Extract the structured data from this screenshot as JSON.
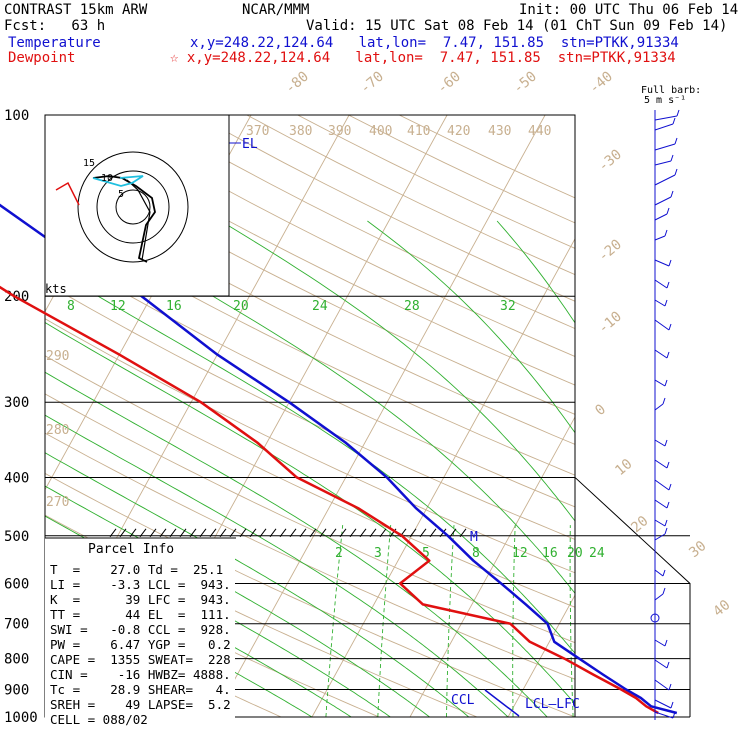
{
  "header": {
    "title": "CONTRAST 15km ARW",
    "forecast": "Fcst:   63 h",
    "center": "NCAR/MMM",
    "init": "Init: 00 UTC Thu 06 Feb 14",
    "valid": "Valid: 15 UTC Sat 08 Feb 14 (01 ChT Sun 09 Feb 14)",
    "temp_label": "Temperature",
    "temp_loc": "x,y=248.22,124.64   lat,lon=  7.47, 151.85  stn=PTKK,91334",
    "dew_label": "Dewpoint",
    "dew_loc": "☆ x,y=248.22,124.64   lat,lon=  7.47, 151.85  stn=PTKK,91334",
    "barb_label_1": "Full barb:",
    "barb_label_2": "5 m s⁻¹",
    "colors": {
      "temperature": "#1010d0",
      "dewpoint": "#e01010",
      "mixing": "#30b030",
      "adiabat": "#c8b090"
    }
  },
  "chart_data": {
    "type": "line",
    "title": "",
    "xlabel": "",
    "ylabel": "",
    "pressure_ticks": [
      100,
      200,
      300,
      400,
      500,
      600,
      700,
      800,
      900,
      1000
    ],
    "ylim": [
      1000,
      100
    ],
    "series": [
      {
        "name": "Temperature",
        "p": [
          985,
          960,
          930,
          900,
          850,
          800,
          750,
          700,
          650,
          600,
          550,
          500,
          450,
          400,
          350,
          300,
          250,
          200,
          180,
          160,
          140,
          130,
          120,
          110,
          100
        ],
        "t": [
          27.0,
          24.0,
          22.5,
          20.5,
          17.3,
          14.0,
          10.5,
          8.8,
          5.5,
          1.8,
          -2.3,
          -6.3,
          -11.1,
          -15.8,
          -22.0,
          -30.0,
          -40.0,
          -51.0,
          -57.0,
          -64.0,
          -71.0,
          -76.0,
          -80.0,
          -82.0,
          -82.5
        ]
      },
      {
        "name": "Dewpoint",
        "p": [
          985,
          960,
          930,
          900,
          850,
          800,
          750,
          700,
          650,
          600,
          550,
          500,
          450,
          400,
          350,
          300,
          250,
          200,
          180,
          160,
          140,
          130,
          120,
          110,
          100
        ],
        "t": [
          25.1,
          23.5,
          22.0,
          20.0,
          16.3,
          12.5,
          8.0,
          5.0,
          -5.0,
          -8.5,
          -6.8,
          -11.0,
          -17.0,
          -25.0,
          -31.0,
          -39.0,
          -50.0,
          -64.0,
          -70.0,
          -79.0,
          -85.0,
          -88.0,
          -88.0,
          -88.0,
          -86.0
        ]
      }
    ],
    "adiabat_labels": [
      "370",
      "380",
      "390",
      "400",
      "410",
      "420",
      "430",
      "440",
      "290",
      "280",
      "270"
    ],
    "isotherm_labels": [
      "-80",
      "-70",
      "-60",
      "-50",
      "-40",
      "-30",
      "-20",
      "-10",
      "0",
      "10",
      "20",
      "30",
      "40"
    ],
    "mixing_labels_upper": [
      "8",
      "12",
      "16",
      "20",
      "24",
      "28",
      "32"
    ],
    "mixing_labels_lower": [
      "2",
      "3",
      "5",
      "8",
      "12",
      "16",
      "20",
      "24"
    ],
    "level_markers": {
      "el": "EL",
      "m": "M",
      "ccl": "CCL",
      "lcl_lfc": "LCL—LFC"
    },
    "hodograph": {
      "units_label": "kts",
      "ring_labels": [
        "5",
        "10",
        "15"
      ]
    }
  },
  "parcel_info": {
    "title": "Parcel Info",
    "rows": [
      "T  =    27.0 Td =  25.1",
      "LI =    -3.3 LCL =  943.",
      "K  =      39 LFC =  943.",
      "TT =      44 EL  =  111.",
      "SWI =   -0.8 CCL =  928.",
      "PW =    6.47 YGP =   0.2",
      "CAPE =  1355 SWEAT=  228",
      "CIN =    -16 HWBZ= 4888.",
      "Tc =    28.9 SHEAR=   4.",
      "SREH =    49 LAPSE=  5.2",
      "CELL = 088/02"
    ]
  }
}
